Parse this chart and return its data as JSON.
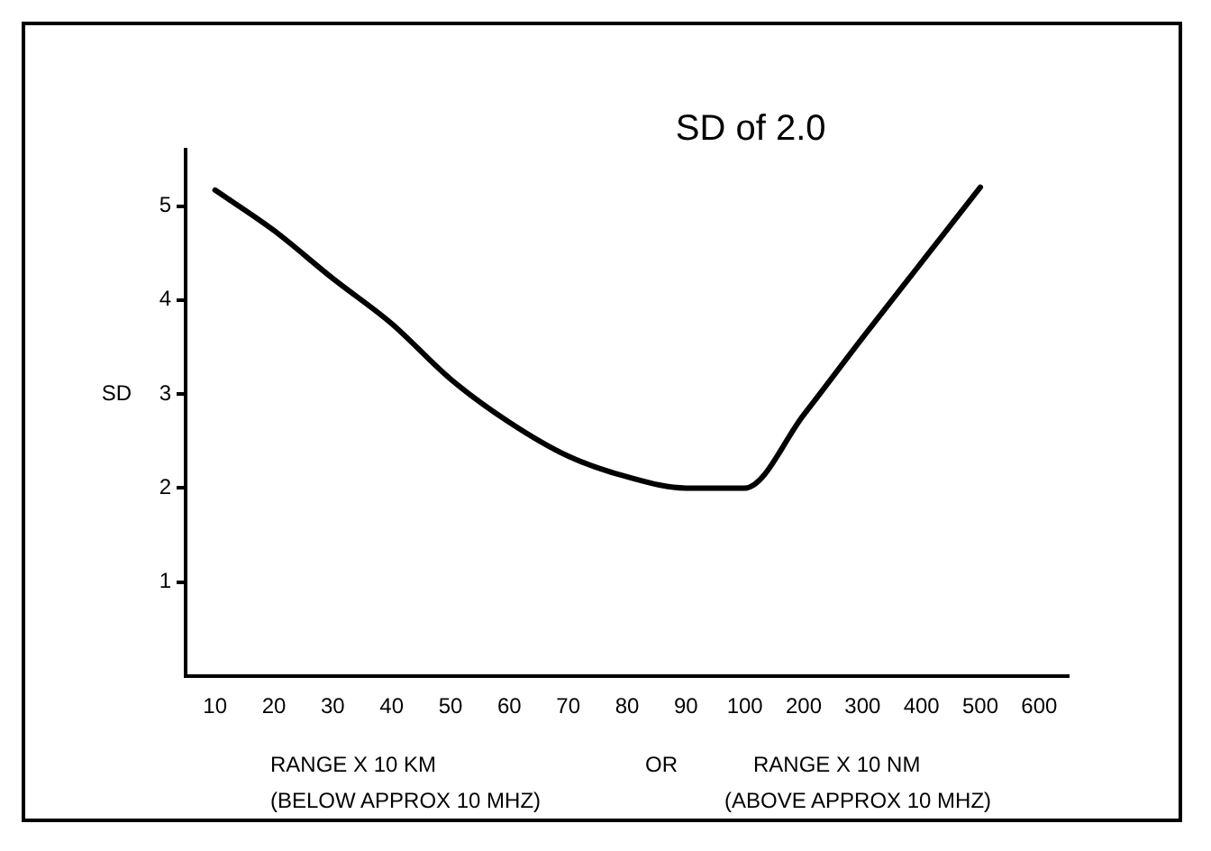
{
  "chart_data": {
    "type": "line",
    "title": "SD of 2.0",
    "xlabel": "RANGE X 10 KM",
    "ylabel": "SD",
    "annotations": [
      "OR",
      "RANGE X 10 NM",
      "(BELOW APPROX  10 MHZ)",
      "(ABOVE APPROX  10 MHZ)"
    ],
    "categories": [
      "10",
      "20",
      "30",
      "40",
      "50",
      "60",
      "70",
      "80",
      "90",
      "100",
      "200",
      "300",
      "400",
      "500",
      "600"
    ],
    "series": [
      {
        "color": "#000000",
        "values": [
          5.17,
          4.74,
          4.23,
          3.75,
          3.16,
          2.7,
          2.34,
          2.12,
          2.0,
          2.0,
          2.78,
          3.6,
          4.4,
          5.2,
          null
        ]
      }
    ],
    "ylim": [
      0,
      5.6
    ],
    "yticks": [
      1,
      2,
      3,
      4,
      5
    ],
    "marker": "none",
    "line_style": "solid",
    "legend": false
  }
}
